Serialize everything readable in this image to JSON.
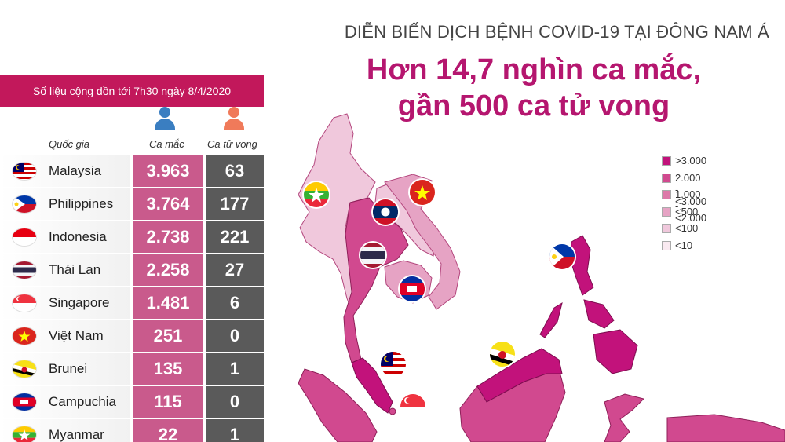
{
  "header": {
    "kicker": "DIỄN BIẾN DỊCH BỆNH COVID-19 TẠI ĐÔNG NAM Á",
    "headline_line1": "Hơn 14,7 nghìn ca mắc,",
    "headline_line2": "gần 500 ca tử vong"
  },
  "table": {
    "cumulative_note": "Số liệu cộng dồn tới 7h30 ngày 8/4/2020",
    "col_country": "Quốc gia",
    "col_cases": "Ca mắc",
    "col_deaths": "Ca tử vong",
    "rows": [
      {
        "country": "Malaysia",
        "cases": "3.963",
        "deaths": "63",
        "flag": "malaysia-flag"
      },
      {
        "country": "Philippines",
        "cases": "3.764",
        "deaths": "177",
        "flag": "philippines-flag"
      },
      {
        "country": "Indonesia",
        "cases": "2.738",
        "deaths": "221",
        "flag": "indonesia-flag"
      },
      {
        "country": "Thái Lan",
        "cases": "2.258",
        "deaths": "27",
        "flag": "thailand-flag"
      },
      {
        "country": "Singapore",
        "cases": "1.481",
        "deaths": "6",
        "flag": "singapore-flag"
      },
      {
        "country": "Việt Nam",
        "cases": "251",
        "deaths": "0",
        "flag": "vietnam-flag"
      },
      {
        "country": "Brunei",
        "cases": "135",
        "deaths": "1",
        "flag": "brunei-flag"
      },
      {
        "country": "Campuchia",
        "cases": "115",
        "deaths": "0",
        "flag": "cambodia-flag"
      },
      {
        "country": "Myanmar",
        "cases": "22",
        "deaths": "1",
        "flag": "myanmar-flag"
      }
    ]
  },
  "legend": {
    "items": [
      {
        "label": ">3.000",
        "color": "#c2127b"
      },
      {
        "label": "2.000 - <3.000",
        "color": "#d1498f"
      },
      {
        "label": "1.000 - <2.000",
        "color": "#dd79a9"
      },
      {
        "label": "<500",
        "color": "#e6a3c4"
      },
      {
        "label": "<100",
        "color": "#f0c8dc"
      },
      {
        "label": "<10",
        "color": "#faeaf1"
      }
    ]
  },
  "colors": {
    "accent": "#c2185b",
    "headline": "#b5166f",
    "cases_cell": "#c95a8c",
    "deaths_cell": "#5a5a5a",
    "cases_icon": "#3a7ec1",
    "deaths_icon": "#f07a5a"
  }
}
